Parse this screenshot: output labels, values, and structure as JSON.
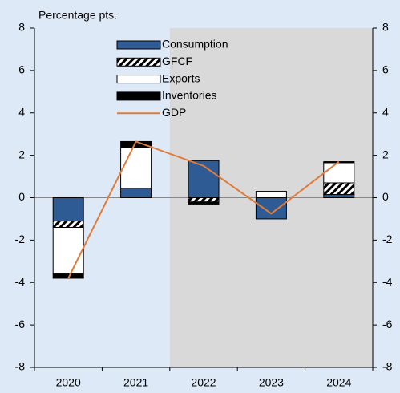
{
  "chart_data": {
    "type": "stacked_bar_line",
    "y_axis_label": "Percentage pts.",
    "categories": [
      "2020",
      "2021",
      "2022",
      "2023",
      "2024"
    ],
    "series": [
      {
        "name": "Consumption",
        "color": "#2f5b94",
        "values": [
          -1.1,
          0.45,
          1.75,
          -1.0,
          0.15
        ]
      },
      {
        "name": "GFCF",
        "color": "#000000",
        "fill": "hatch",
        "values": [
          -0.3,
          0,
          -0.2,
          0,
          0.55
        ]
      },
      {
        "name": "Exports",
        "color": "#ffffff",
        "values": [
          -2.2,
          1.9,
          0,
          0.3,
          0.95
        ]
      },
      {
        "name": "Inventories",
        "color": "#000000",
        "values": [
          -0.2,
          0.3,
          -0.1,
          0,
          0.05
        ]
      },
      {
        "name": "GDP",
        "type": "line",
        "color": "#e07b39",
        "values": [
          -3.8,
          2.65,
          1.5,
          -0.75,
          1.7
        ]
      }
    ],
    "ylim": [
      -8,
      8
    ],
    "yticks": [
      -8,
      -6,
      -4,
      -2,
      0,
      2,
      4,
      6,
      8
    ],
    "y2lim": [
      -8,
      8
    ],
    "y2ticks": [
      -8,
      -6,
      -4,
      -2,
      0,
      2,
      4,
      6,
      8
    ],
    "shade_from_index": 2,
    "background": "#dde9f6",
    "shade_color": "#d9d9d9"
  }
}
